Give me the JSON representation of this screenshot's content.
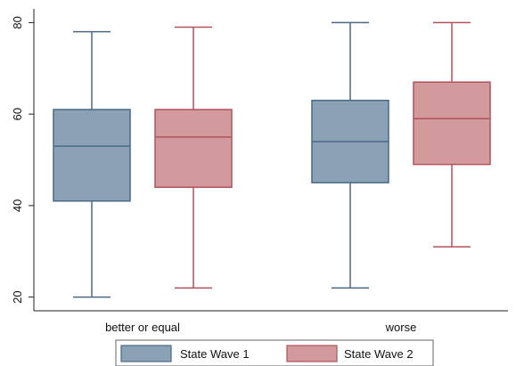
{
  "chart_data": {
    "type": "box",
    "categories": [
      "better or equal",
      "worse"
    ],
    "ylim": [
      17,
      83
    ],
    "yticks": [
      20,
      40,
      60,
      80
    ],
    "grid": false,
    "legend_position": "bottom",
    "series": [
      {
        "name": "State Wave 1",
        "fill": "#8ba1b6",
        "stroke": "#4a6987",
        "boxes": [
          {
            "category": "better or equal",
            "min": 20,
            "q1": 41,
            "median": 53,
            "q3": 61,
            "max": 78
          },
          {
            "category": "worse",
            "min": 22,
            "q1": 45,
            "median": 54,
            "q3": 63,
            "max": 80
          }
        ]
      },
      {
        "name": "State Wave 2",
        "fill": "#d39a9e",
        "stroke": "#b0535b",
        "boxes": [
          {
            "category": "better or equal",
            "min": 22,
            "q1": 44,
            "median": 55,
            "q3": 61,
            "max": 79
          },
          {
            "category": "worse",
            "min": 31,
            "q1": 49,
            "median": 59,
            "q3": 67,
            "max": 80
          }
        ]
      }
    ]
  }
}
